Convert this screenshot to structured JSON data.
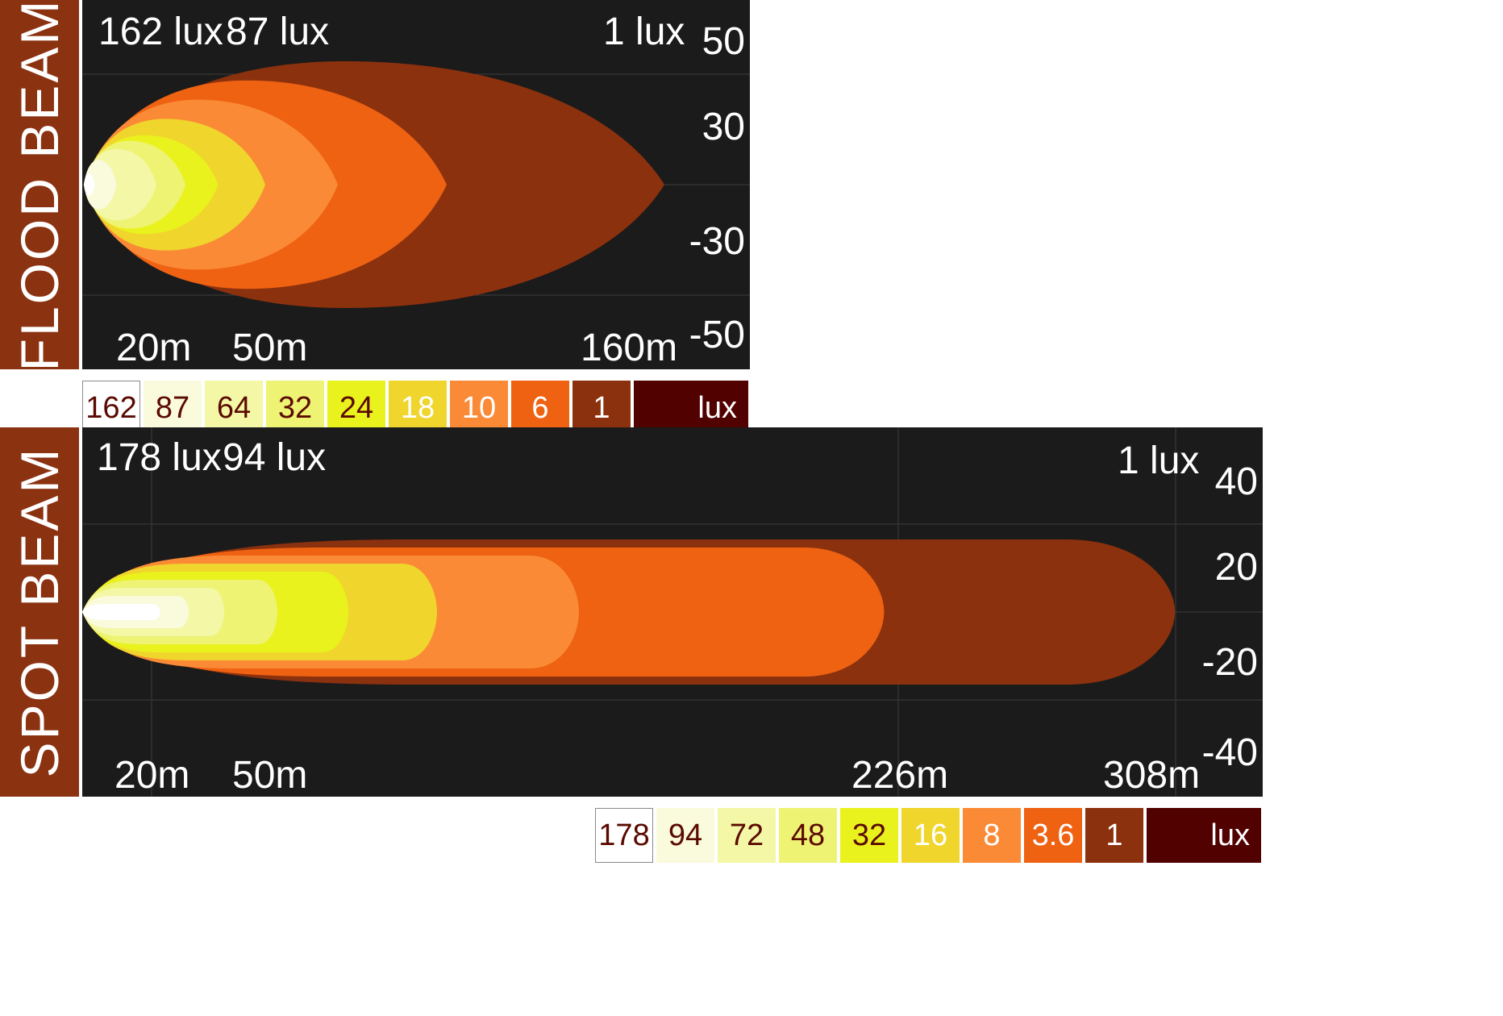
{
  "flood": {
    "label": "FLOOD BEAM",
    "lux_labels": [
      "162 lux",
      "87 lux",
      "1 lux"
    ],
    "distance_labels": [
      "20m",
      "50m",
      "160m"
    ],
    "y_ticks": [
      "50",
      "30",
      "-30",
      "-50"
    ],
    "legend": [
      {
        "value": "162",
        "color": "#ffffff",
        "text_color": "#5a0a00"
      },
      {
        "value": "87",
        "color": "#fafadd",
        "text_color": "#5a0a00"
      },
      {
        "value": "64",
        "color": "#f4f7a6",
        "text_color": "#5a0a00"
      },
      {
        "value": "32",
        "color": "#eef374",
        "text_color": "#5a0a00"
      },
      {
        "value": "24",
        "color": "#eaf21e",
        "text_color": "#5a0a00"
      },
      {
        "value": "18",
        "color": "#efd52c",
        "text_color": "#ffffff"
      },
      {
        "value": "10",
        "color": "#fa8a36",
        "text_color": "#ffffff"
      },
      {
        "value": "6",
        "color": "#ee6212",
        "text_color": "#ffffff"
      },
      {
        "value": "1",
        "color": "#8c310e",
        "text_color": "#ffffff"
      }
    ],
    "legend_unit": "lux",
    "legend_unit_color": "#520101"
  },
  "spot": {
    "label": "SPOT BEAM",
    "lux_labels": [
      "178 lux",
      "94 lux",
      "1 lux"
    ],
    "distance_labels": [
      "20m",
      "50m",
      "226m",
      "308m"
    ],
    "y_ticks": [
      "40",
      "20",
      "-20",
      "-40"
    ],
    "legend": [
      {
        "value": "178",
        "color": "#ffffff",
        "text_color": "#5a0a00"
      },
      {
        "value": "94",
        "color": "#fafadd",
        "text_color": "#5a0a00"
      },
      {
        "value": "72",
        "color": "#f4f7a6",
        "text_color": "#5a0a00"
      },
      {
        "value": "48",
        "color": "#eef374",
        "text_color": "#5a0a00"
      },
      {
        "value": "32",
        "color": "#eaf21e",
        "text_color": "#5a0a00"
      },
      {
        "value": "16",
        "color": "#efd52c",
        "text_color": "#ffffff"
      },
      {
        "value": "8",
        "color": "#fa8a36",
        "text_color": "#ffffff"
      },
      {
        "value": "3.6",
        "color": "#ee6212",
        "text_color": "#ffffff"
      },
      {
        "value": "1",
        "color": "#8c310e",
        "text_color": "#ffffff"
      }
    ],
    "legend_unit": "lux",
    "legend_unit_color": "#520101"
  },
  "chart_data": [
    {
      "type": "area",
      "title": "FLOOD BEAM",
      "xlabel": "",
      "ylabel": "",
      "lux_levels": [
        162,
        87,
        64,
        32,
        24,
        18,
        10,
        6,
        1
      ],
      "reach_m": [
        3,
        9,
        20,
        28,
        37,
        50,
        70,
        100,
        160
      ],
      "half_width": [
        4,
        9,
        13,
        16,
        18,
        24,
        31,
        38,
        45
      ],
      "colors": [
        "#ffffff",
        "#fafadd",
        "#f4f7a6",
        "#eef374",
        "#eaf21e",
        "#efd52c",
        "#fa8a36",
        "#ee6212",
        "#8c310e"
      ],
      "distance_ticks": [
        20,
        50,
        160
      ],
      "y_ticks": [
        50,
        30,
        -30,
        -50
      ],
      "ylim": [
        -56,
        56
      ]
    },
    {
      "type": "area",
      "title": "SPOT BEAM",
      "xlabel": "",
      "ylabel": "",
      "lux_levels": [
        178,
        94,
        72,
        48,
        32,
        16,
        8,
        3.6,
        1
      ],
      "reach_m": [
        22,
        30,
        40,
        55,
        75,
        100,
        140,
        226,
        308
      ],
      "half_width": [
        2,
        4,
        6,
        8,
        10,
        12,
        14,
        16,
        18
      ],
      "colors": [
        "#ffffff",
        "#fafadd",
        "#f4f7a6",
        "#eef374",
        "#eaf21e",
        "#efd52c",
        "#fa8a36",
        "#ee6212",
        "#8c310e"
      ],
      "distance_ticks": [
        20,
        50,
        226,
        308
      ],
      "y_ticks": [
        40,
        20,
        -20,
        -40
      ],
      "ylim": [
        -46,
        46
      ]
    }
  ]
}
